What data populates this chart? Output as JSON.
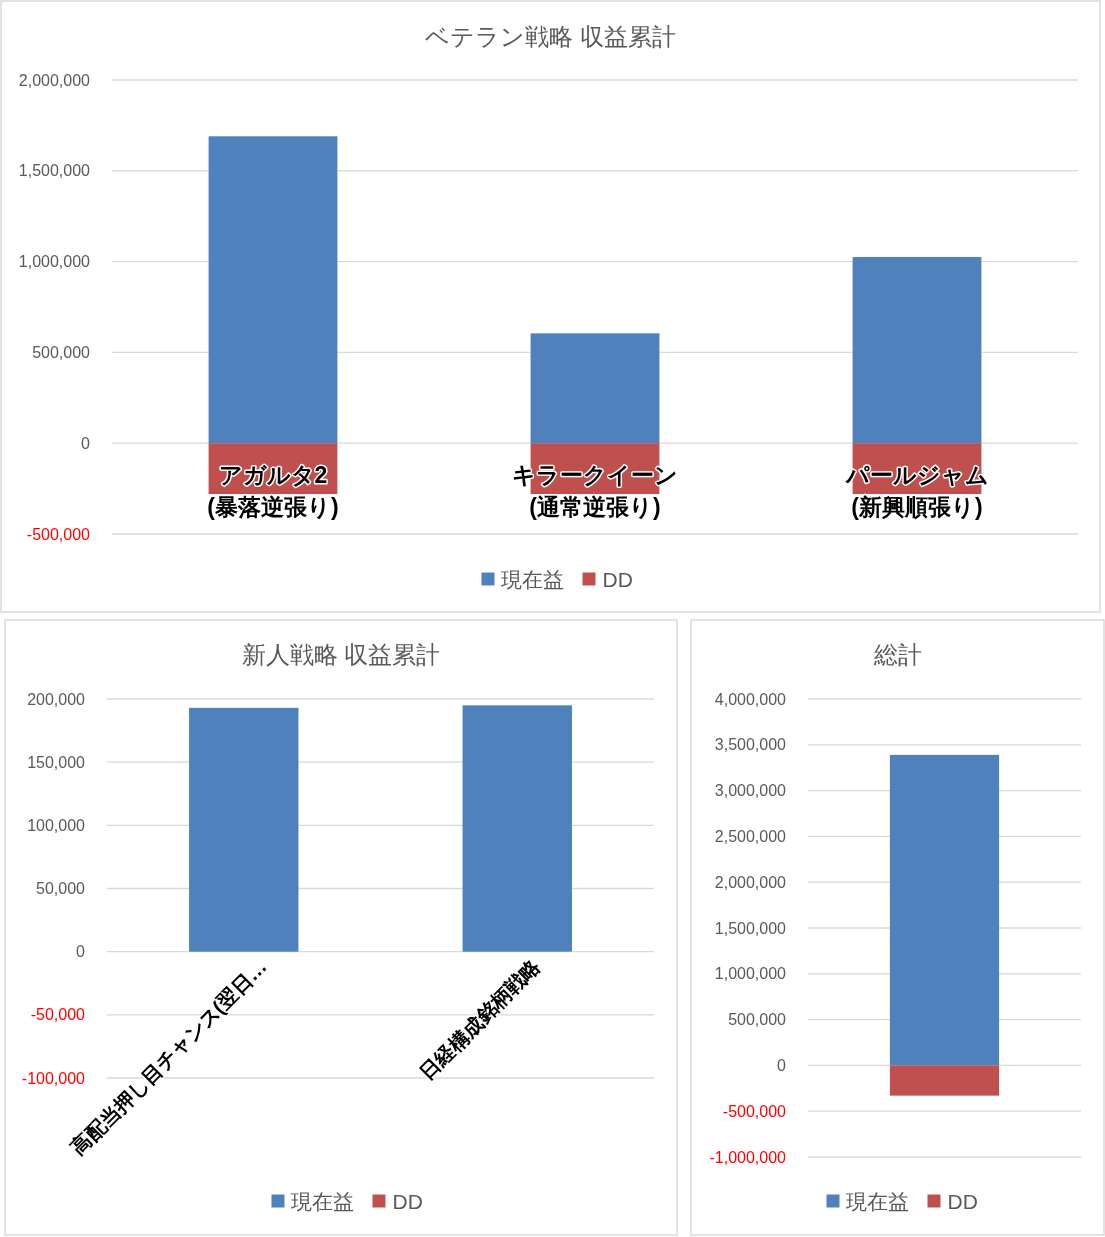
{
  "chart_data": [
    {
      "type": "bar",
      "title": "ベテラン戦略 収益累計",
      "categories": [
        "アガルタ2\n(暴落逆張り)",
        "キラークイーン\n(通常逆張り)",
        "パールジャム\n(新興順張り)"
      ],
      "series": [
        {
          "name": "現在益",
          "color": "#4f81bd",
          "values": [
            1690000,
            605000,
            1025000
          ]
        },
        {
          "name": "DD",
          "color": "#c0504d",
          "values": [
            -280000,
            -280000,
            -280000
          ]
        }
      ],
      "stacked": true,
      "ylim": [
        -500000,
        2000000
      ],
      "yticks": [
        {
          "value": -500000,
          "label": "-500,000"
        },
        {
          "value": 0,
          "label": "0"
        },
        {
          "value": 500000,
          "label": "500,000"
        },
        {
          "value": 1000000,
          "label": "1,000,000"
        },
        {
          "value": 1500000,
          "label": "1,500,000"
        },
        {
          "value": 2000000,
          "label": "2,000,000"
        }
      ],
      "grid": "y",
      "legend": "bottom"
    },
    {
      "type": "bar",
      "title": "新人戦略 収益累計",
      "categories": [
        "高配当押し目チャンス(翌日…",
        "日経構成銘柄戦略"
      ],
      "series": [
        {
          "name": "現在益",
          "color": "#4f81bd",
          "values": [
            193000,
            195000
          ]
        },
        {
          "name": "DD",
          "color": "#c0504d",
          "values": [
            null,
            null
          ]
        }
      ],
      "stacked": true,
      "ylim": [
        -100000,
        200000
      ],
      "yticks": [
        {
          "value": -100000,
          "label": "-100,000"
        },
        {
          "value": -50000,
          "label": "-50,000"
        },
        {
          "value": 0,
          "label": "0"
        },
        {
          "value": 50000,
          "label": "50,000"
        },
        {
          "value": 100000,
          "label": "100,000"
        },
        {
          "value": 150000,
          "label": "150,000"
        },
        {
          "value": 200000,
          "label": "200,000"
        }
      ],
      "grid": "y",
      "legend": "bottom"
    },
    {
      "type": "bar",
      "title": "総計",
      "categories": [
        null
      ],
      "series": [
        {
          "name": "現在益",
          "color": "#4f81bd",
          "values": [
            3390000
          ]
        },
        {
          "name": "DD",
          "color": "#c0504d",
          "values": [
            -330000
          ]
        }
      ],
      "stacked": true,
      "ylim": [
        -1000000,
        4000000
      ],
      "yticks": [
        {
          "value": -1000000,
          "label": "-1,000,000"
        },
        {
          "value": -500000,
          "label": "-500,000"
        },
        {
          "value": 0,
          "label": "0"
        },
        {
          "value": 500000,
          "label": "500,000"
        },
        {
          "value": 1000000,
          "label": "1,000,000"
        },
        {
          "value": 1500000,
          "label": "1,500,000"
        },
        {
          "value": 2000000,
          "label": "2,000,000"
        },
        {
          "value": 2500000,
          "label": "2,500,000"
        },
        {
          "value": 3000000,
          "label": "3,000,000"
        },
        {
          "value": 3500000,
          "label": "3,500,000"
        },
        {
          "value": 4000000,
          "label": "4,000,000"
        }
      ],
      "grid": "y",
      "legend": "bottom"
    }
  ]
}
